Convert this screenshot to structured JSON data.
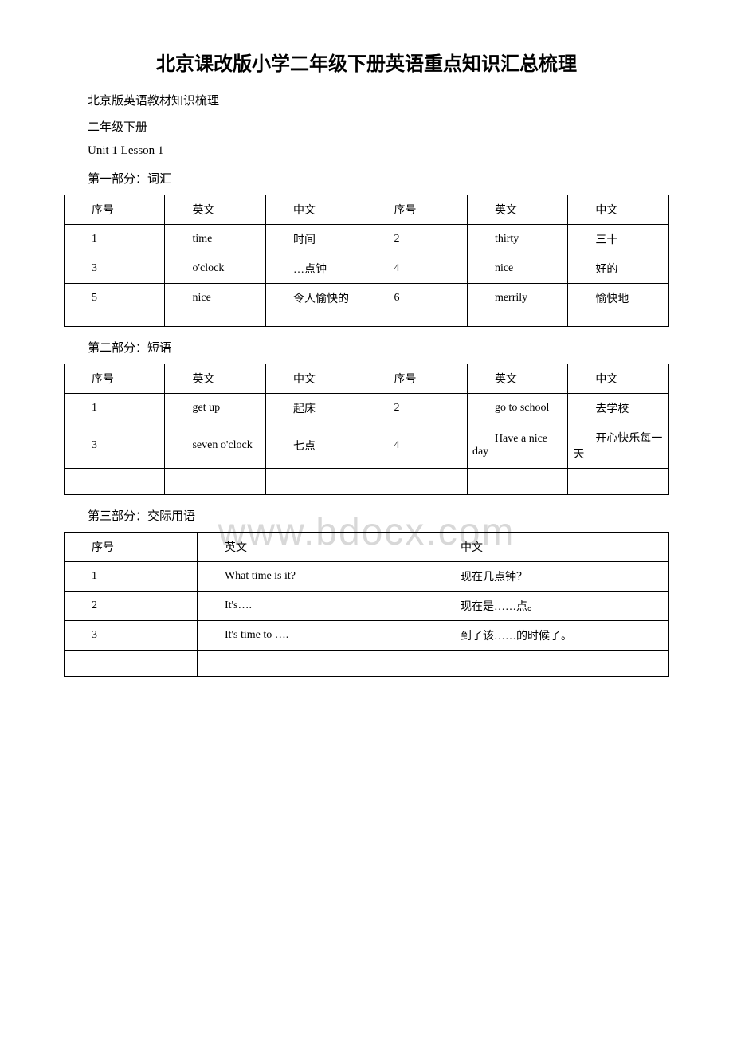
{
  "title": "北京课改版小学二年级下册英语重点知识汇总梳理",
  "subtitles": [
    "北京版英语教材知识梳理",
    "二年级下册",
    "Unit 1 Lesson 1"
  ],
  "watermark": "www.bdocx.com",
  "sections": {
    "vocab": {
      "label": "第一部分：词汇",
      "headers": [
        "序号",
        "英文",
        "中文",
        "序号",
        "英文",
        "中文"
      ],
      "rows": [
        [
          "1",
          "time",
          "时间",
          "2",
          "thirty",
          "三十"
        ],
        [
          "3",
          "o'clock",
          "…点钟",
          "4",
          "nice",
          "好的"
        ],
        [
          "5",
          "nice",
          "令人愉快的",
          "6",
          "merrily",
          "愉快地"
        ],
        [
          "",
          "",
          "",
          "",
          "",
          ""
        ]
      ]
    },
    "phrases": {
      "label": "第二部分：短语",
      "headers": [
        "序号",
        "英文",
        "中文",
        "序号",
        "英文",
        "中文"
      ],
      "rows": [
        [
          "1",
          "get up",
          "起床",
          "2",
          "go to school",
          "去学校"
        ],
        [
          "3",
          "seven o'clock",
          "七点",
          "4",
          "Have a nice day",
          "开心快乐每一天"
        ],
        [
          "",
          "",
          "",
          "",
          "",
          ""
        ]
      ]
    },
    "conversation": {
      "label": "第三部分：交际用语",
      "headers": [
        "序号",
        "英文",
        "中文"
      ],
      "rows": [
        [
          "1",
          "What time is it?",
          "现在几点钟？"
        ],
        [
          "2",
          "It's….",
          "现在是……点。"
        ],
        [
          "3",
          "It's time to ….",
          "到了该……的时候了。"
        ],
        [
          "",
          "",
          ""
        ]
      ]
    }
  }
}
